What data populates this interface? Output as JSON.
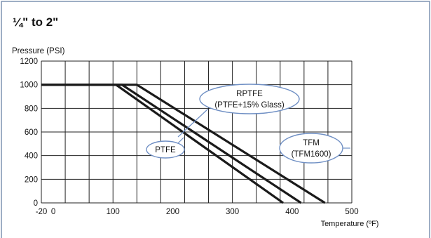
{
  "panel": {
    "title": "¼\" to 2\"",
    "border_color": "#7f93b2"
  },
  "chart_data": {
    "type": "line",
    "title": "",
    "ylabel": "Pressure (PSI)",
    "xlabel": "Temperature (ºF)",
    "xlim": [
      -20,
      500
    ],
    "ylim": [
      0,
      1200
    ],
    "x_ticks": [
      -20,
      0,
      100,
      200,
      300,
      400,
      500
    ],
    "y_ticks": [
      0,
      200,
      400,
      600,
      800,
      1000,
      1200
    ],
    "grid": true,
    "series": [
      {
        "name": "PTFE",
        "x": [
          -20,
          105,
          385
        ],
        "y": [
          1000,
          1000,
          0
        ]
      },
      {
        "name": "TFM (TFM1600)",
        "x": [
          -20,
          115,
          415
        ],
        "y": [
          1000,
          1000,
          0
        ]
      },
      {
        "name": "RPTFE (PTFE+15% Glass)",
        "x": [
          -20,
          140,
          455
        ],
        "y": [
          1000,
          1000,
          0
        ]
      }
    ],
    "annotations": [
      {
        "lines": [
          "RPTFE",
          "(PTFE+15% Glass)"
        ],
        "target_series": "RPTFE (PTFE+15% Glass)"
      },
      {
        "lines": [
          "PTFE"
        ],
        "target_series": "PTFE"
      },
      {
        "lines": [
          "TFM",
          "(TFM1600)"
        ],
        "target_series": "TFM (TFM1600)"
      }
    ],
    "line_color": "#1a1a1a",
    "callout_color": "#6f8fc4"
  }
}
